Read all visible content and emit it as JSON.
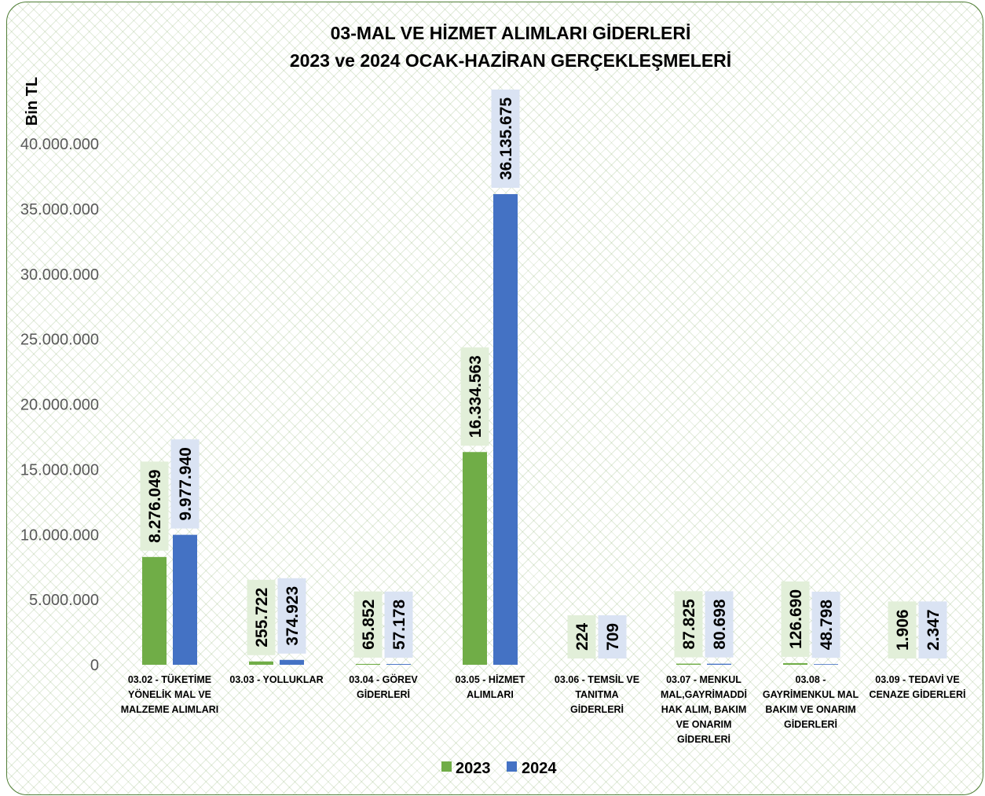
{
  "chart_data": {
    "type": "bar",
    "title": "03-MAL VE HİZMET ALIMLARI GİDERLERİ",
    "subtitle": "2023 ve 2024 OCAK-HAZİRAN GERÇEKLEŞMELERİ",
    "xlabel": "",
    "ylabel": "Bin TL",
    "ylim": [
      0,
      40000000
    ],
    "yticks": [
      0,
      5000000,
      10000000,
      15000000,
      20000000,
      25000000,
      30000000,
      35000000,
      40000000
    ],
    "ytick_labels": [
      "0",
      "5.000.000",
      "10.000.000",
      "15.000.000",
      "20.000.000",
      "25.000.000",
      "30.000.000",
      "35.000.000",
      "40.000.000"
    ],
    "grid": false,
    "legend": "bottom",
    "categories": [
      "03.02 - TÜKETİME\nYÖNELİK MAL VE\nMALZEME ALIMLARI",
      "03.03 - YOLLUKLAR",
      "03.04 - GÖREV\nGİDERLERİ",
      "03.05 - HİZMET\nALIMLARI",
      "03.06 - TEMSİL VE\nTANITMA\nGİDERLERİ",
      "03.07 - MENKUL\nMAL,GAYRİMADDİ\nHAK ALIM, BAKIM\nVE ONARIM\nGİDERLERİ",
      "03.08 -\nGAYRİMENKUL MAL\nBAKIM VE ONARIM\nGİDERLERİ",
      "03.09 - TEDAVİ VE\nCENAZE GİDERLERİ"
    ],
    "series": [
      {
        "name": "2023",
        "color": "#70ad47",
        "label_background": "#e2efd9",
        "values": [
          8276049,
          255722,
          65852,
          16334563,
          224,
          87825,
          126690,
          1906
        ],
        "data_labels": [
          "8.276.049",
          "255.722",
          "65.852",
          "16.334.563",
          "224",
          "87.825",
          "126.690",
          "1.906"
        ]
      },
      {
        "name": "2024",
        "color": "#4472c4",
        "label_background": "#dae3f3",
        "values": [
          9977940,
          374923,
          57178,
          36135675,
          709,
          80698,
          48798,
          2347
        ],
        "data_labels": [
          "9.977.940",
          "374.923",
          "57.178",
          "36.135.675",
          "709",
          "80.698",
          "48.798",
          "2.347"
        ]
      }
    ]
  }
}
